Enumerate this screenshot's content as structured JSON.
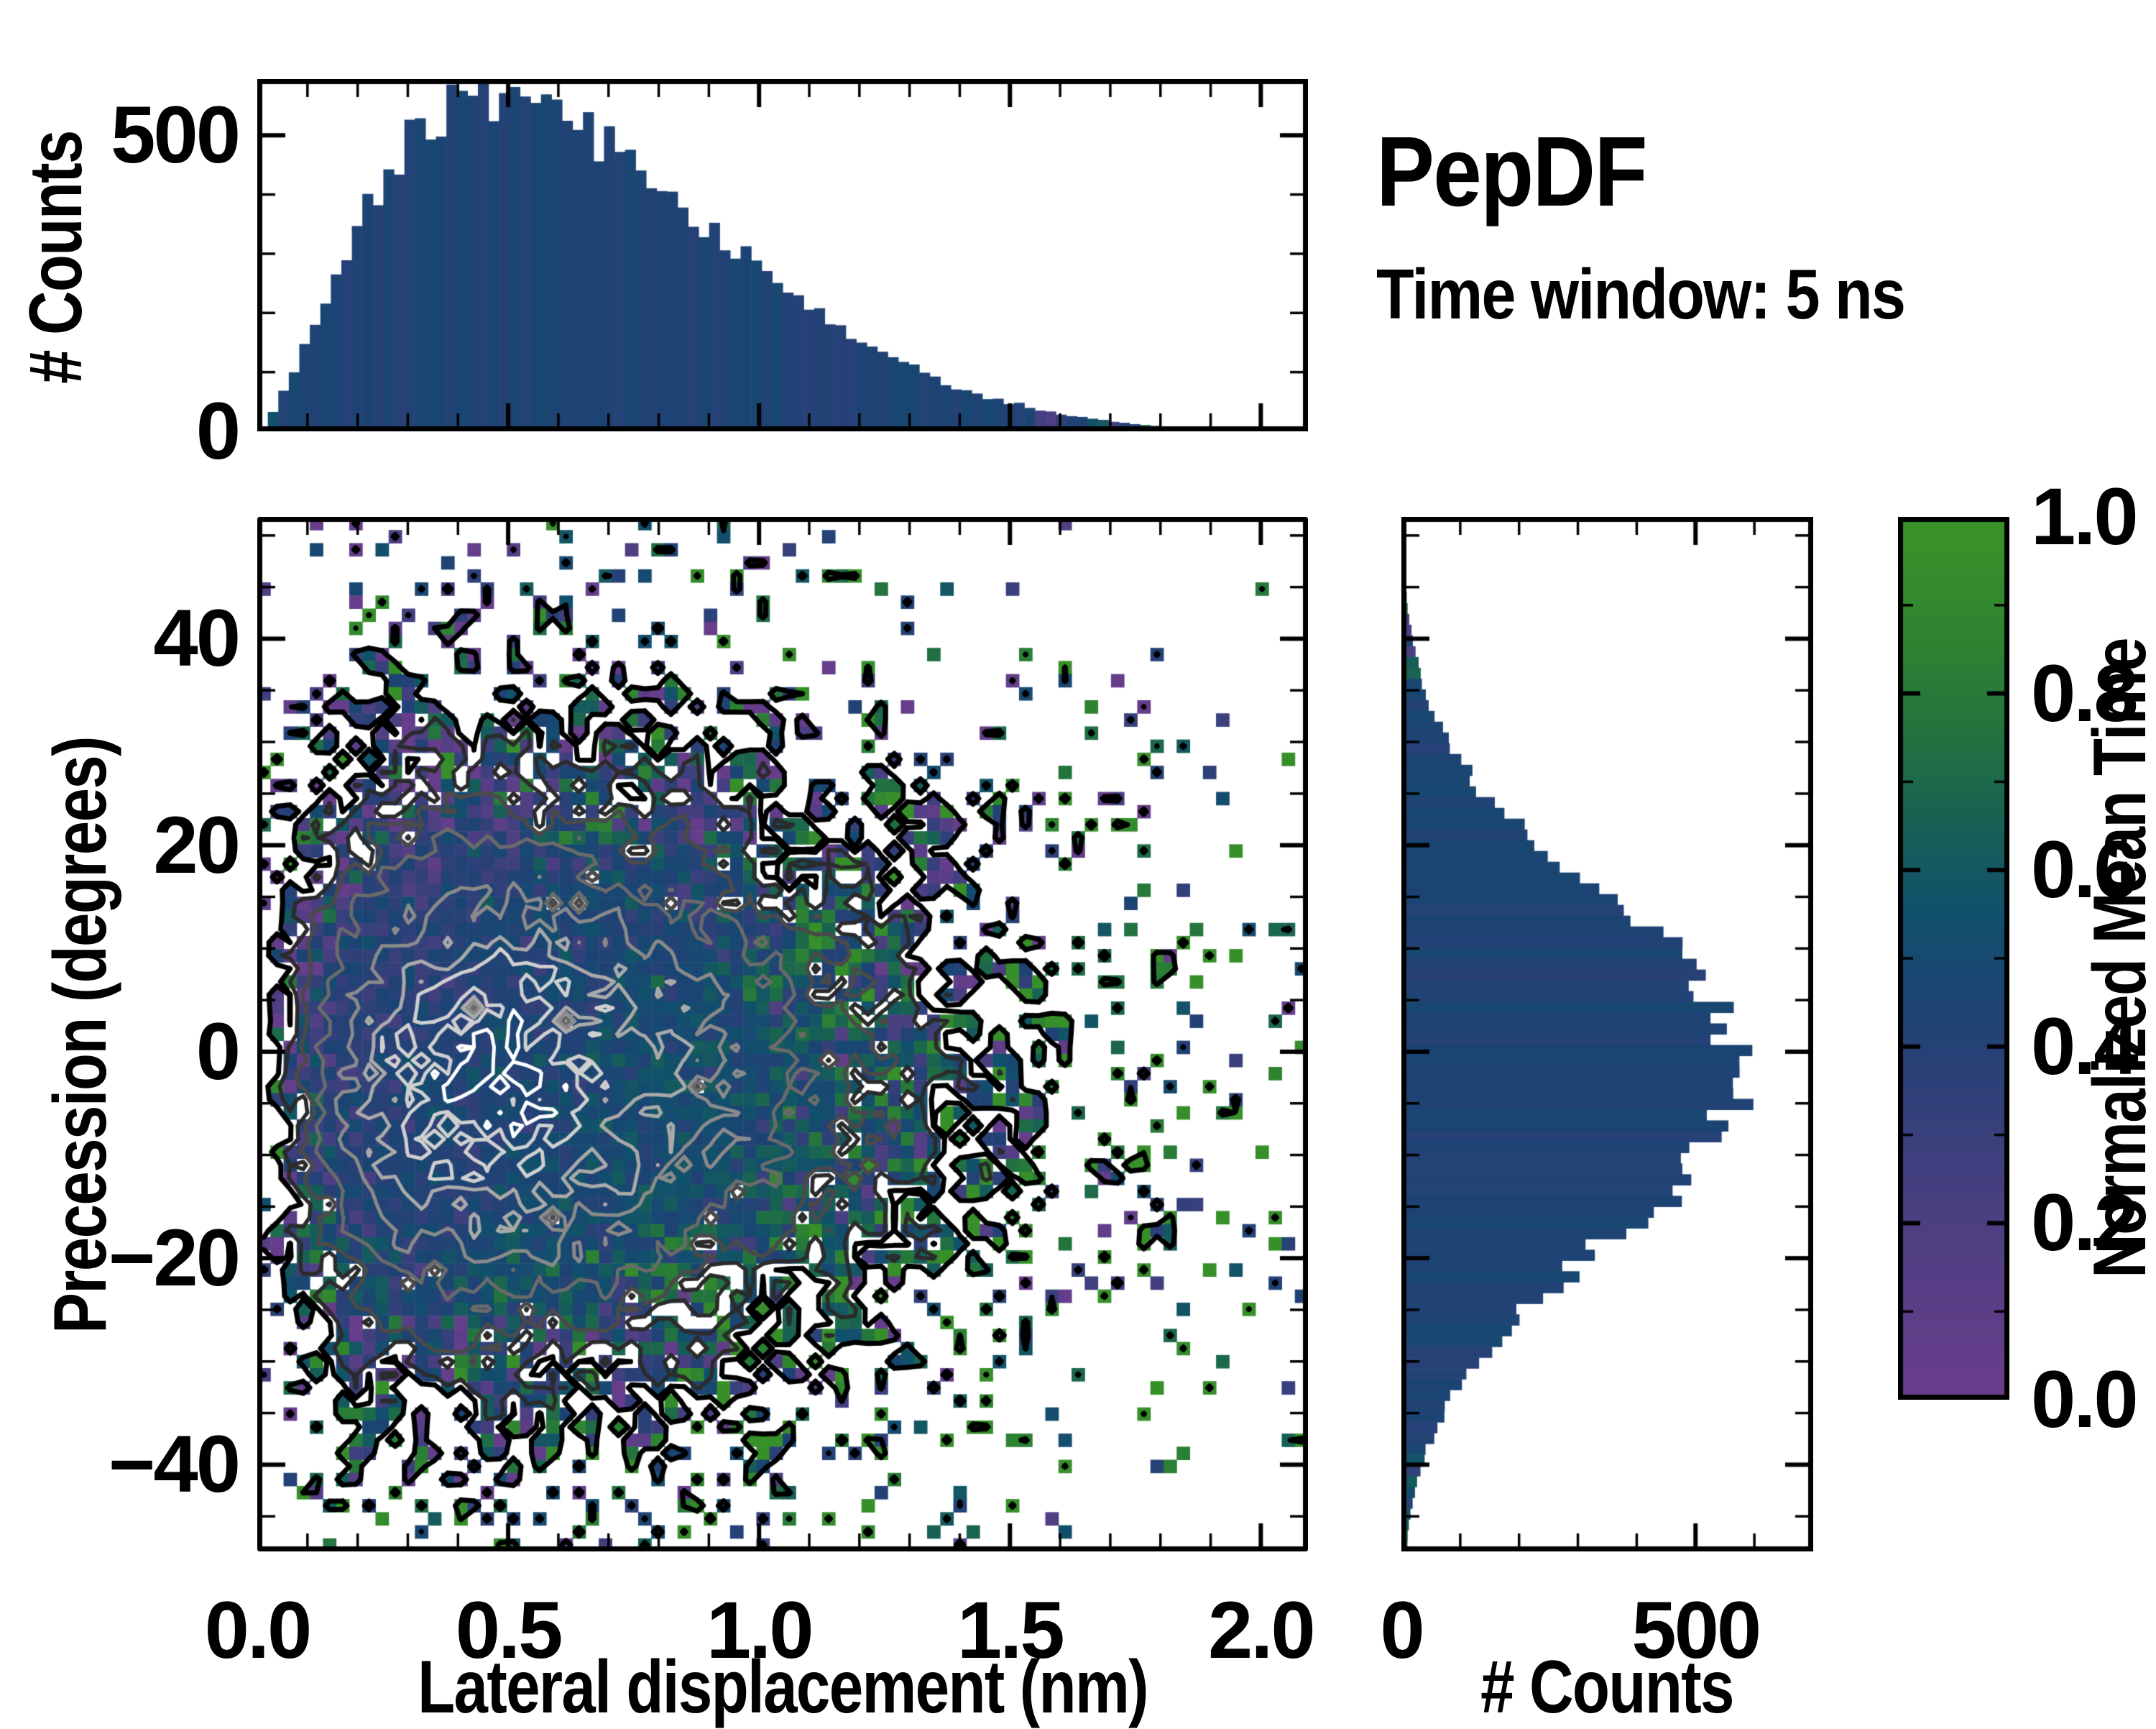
{
  "figure": {
    "title": "PepDF",
    "subtitle": "Time window: 5 ns",
    "background": "#ffffff",
    "spine_color": "#000000",
    "text_color": "#000000"
  },
  "labels": {
    "top_ylabel": "# Counts",
    "main_xlabel": "Lateral displacement (nm)",
    "main_ylabel": "Precession (degrees)",
    "right_xlabel": "# Counts",
    "cbar_label": "Normalized Mean Time"
  },
  "chart_data": {
    "joint_heatmap": {
      "type": "heatmap",
      "xlabel": "Lateral displacement (nm)",
      "ylabel": "Precession (degrees)",
      "xlim": [
        0,
        2.094
      ],
      "ylim": [
        -48.4,
        51.8
      ],
      "x_major_step": 0.5,
      "x_minor_step": 0.1,
      "y_major_step": 20,
      "y_minor_step": 5,
      "x_tick_labels": {
        "values": [
          0,
          0.5,
          1.0,
          1.5,
          2.0
        ],
        "labels": [
          "0.0",
          "0.5",
          "1.0",
          "1.5",
          "2.0"
        ]
      },
      "y_tick_labels": {
        "values": [
          40,
          20,
          0,
          -20,
          -40
        ],
        "labels": [
          "40",
          "20",
          "0",
          "−20",
          "−40"
        ]
      },
      "nx": 80,
      "ny": 79,
      "seed": 303,
      "density": {
        "k": 1.6,
        "theta": 0.3,
        "crush_scale": 1.55,
        "crush_pow": 4,
        "y_center": -2,
        "y_sigma": 16
      },
      "fill": {
        "coeff": 1.55,
        "power": 0.5,
        "max_p": 0.985
      },
      "value_model": {
        "base": 0.46,
        "kx": 0.16,
        "x0": 0.62,
        "ky": -0.002,
        "sigma_min": 0.07,
        "sigma_range": 0.3,
        "clamp": [
          0.04,
          0.96
        ]
      },
      "contours": {
        "levels": [
          0.1,
          0.21,
          0.33,
          0.45,
          0.57,
          0.68,
          0.79,
          0.9
        ],
        "colors": [
          "#000000",
          "#2b2b2b",
          "#4a4a4a",
          "#6a6a6a",
          "#8a8a8a",
          "#a9a9a9",
          "#cfcfcf",
          "#ffffff"
        ],
        "line_widths": [
          7,
          5.5,
          5.5,
          5,
          5,
          5,
          5,
          5
        ],
        "sharp_mix": 0.45,
        "base_amp": 0.22,
        "amp_density": 0.9,
        "noise_amp": 0.5
      }
    },
    "top_histogram": {
      "type": "bar",
      "ylabel": "# Counts",
      "bins": 100,
      "seed": 101,
      "peak_counts": 558,
      "noise": 0.09,
      "dropout_below": 6,
      "dropout_p": 0.25,
      "y_axis": {
        "lim": [
          0,
          595
        ],
        "major_step": 500,
        "minor_step": 100,
        "tick_labels": {
          "values": [
            500,
            0
          ],
          "labels": [
            "500",
            "0"
          ]
        }
      }
    },
    "right_histogram": {
      "type": "bar",
      "xlabel": "# Counts",
      "bins": 96,
      "seed": 202,
      "peak_counts": 592,
      "noise": 0.1,
      "center": -2,
      "sigma": 16,
      "x_axis": {
        "lim": [
          0,
          700
        ],
        "major_step": 500,
        "minor_step": 100,
        "tick_labels": {
          "values": [
            0,
            500
          ],
          "labels": [
            "0",
            "500"
          ]
        }
      }
    },
    "colorbar": {
      "label": "Normalized Mean Time",
      "lim": [
        0,
        1
      ],
      "major_step": 0.2,
      "minor_step": 0.1,
      "tick_labels": {
        "values": [
          1.0,
          0.8,
          0.6,
          0.4,
          0.2,
          0.0
        ],
        "labels": [
          "1.0",
          "0.8",
          "0.6",
          "0.4",
          "0.2",
          "0.0"
        ]
      },
      "colormap": [
        [
          0.0,
          "#6b3d8c"
        ],
        [
          0.2,
          "#4c3f82"
        ],
        [
          0.35,
          "#2f4079"
        ],
        [
          0.45,
          "#1c4374"
        ],
        [
          0.55,
          "#11506c"
        ],
        [
          0.65,
          "#176055"
        ],
        [
          0.75,
          "#227240"
        ],
        [
          0.85,
          "#2d8232"
        ],
        [
          1.0,
          "#3b9427"
        ]
      ]
    },
    "bar_color_model": {
      "base_v": 0.44,
      "jitter": 0.05,
      "tail_threshold": 40,
      "tail_jitter": 0.3
    }
  }
}
